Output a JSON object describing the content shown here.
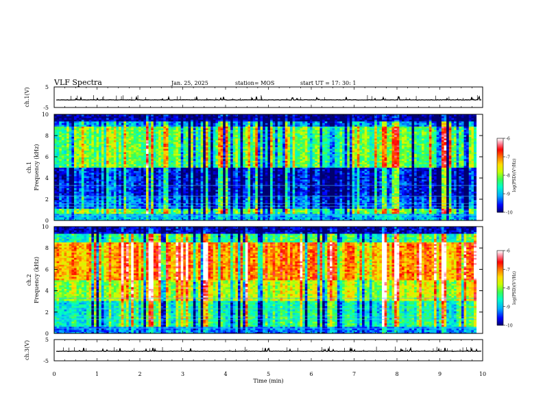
{
  "header": {
    "title": "VLF Spectra",
    "date": "Jan. 25, 2025",
    "station": "station= MOS",
    "start_time": "start  UT =   17: 30: 1"
  },
  "chart_data": [
    {
      "type": "line",
      "panel": "ch1-waveform",
      "ylabel": "ch.1(V)",
      "ylim": [
        -5,
        5
      ],
      "yticks": [
        "5",
        "-5"
      ],
      "xlim": [
        0,
        10
      ],
      "baseline_value": -1.3,
      "description": "near-flat trace with occasional small spikes"
    },
    {
      "type": "heatmap",
      "panel": "ch1-spectrogram",
      "ylabel": "ch.1\nFrequency (kHz)",
      "ylabel_line1": "ch.1",
      "ylabel_line2": "Frequency (kHz)",
      "xlim": [
        0,
        9.85
      ],
      "ylim": [
        0,
        10
      ],
      "yticks": [
        "0",
        "2",
        "4",
        "6",
        "8",
        "10"
      ],
      "colorbar": {
        "label": "log(PSD)(V²/Hz)",
        "range": [
          -10,
          -6
        ],
        "ticks": [
          "-6",
          "-7",
          "-8",
          "-9",
          "-10"
        ],
        "colormap": [
          "#000080",
          "#0000ff",
          "#00bfff",
          "#00ff80",
          "#80ff00",
          "#ffff00",
          "#ff8000",
          "#ff0000",
          "#ff8080",
          "#ffffff"
        ]
      },
      "bands": [
        {
          "freq_range": [
            0,
            0.6
          ],
          "level": -9.0
        },
        {
          "freq_range": [
            0.6,
            1.2
          ],
          "level": -8.2
        },
        {
          "freq_range": [
            1.2,
            2.2
          ],
          "level": -9.3
        },
        {
          "freq_range": [
            2.2,
            5.0
          ],
          "level": -9.6
        },
        {
          "freq_range": [
            5.0,
            8.9
          ],
          "level": -8.2
        },
        {
          "freq_range": [
            8.9,
            9.4
          ],
          "level": -9.2
        },
        {
          "freq_range": [
            9.4,
            10
          ],
          "level": -9.9
        }
      ],
      "hot_times": [
        2.2,
        2.3,
        7.7,
        8.0,
        9.1
      ],
      "noise_level": "high"
    },
    {
      "type": "heatmap",
      "panel": "ch2-spectrogram",
      "ylabel": "ch.2\nFrequency (kHz)",
      "ylabel_line1": "ch.2",
      "ylabel_line2": "Frequency (kHz)",
      "xlim": [
        0,
        9.85
      ],
      "ylim": [
        0,
        10
      ],
      "yticks": [
        "0",
        "2",
        "4",
        "6",
        "8",
        "10"
      ],
      "colorbar": {
        "label": "log(PSD)(V²/Hz)",
        "range": [
          -10,
          -6
        ],
        "ticks": [
          "-6",
          "-7",
          "-8",
          "-9",
          "-10"
        ]
      },
      "bands": [
        {
          "freq_range": [
            0,
            0.6
          ],
          "level": -9.2
        },
        {
          "freq_range": [
            0.6,
            1.8
          ],
          "level": -8.5
        },
        {
          "freq_range": [
            1.8,
            3.0
          ],
          "level": -8.6
        },
        {
          "freq_range": [
            3.0,
            5.0
          ],
          "level": -7.8
        },
        {
          "freq_range": [
            5.0,
            8.5
          ],
          "level": -7.1
        },
        {
          "freq_range": [
            8.5,
            9.3
          ],
          "level": -8.4
        },
        {
          "freq_range": [
            9.3,
            10
          ],
          "level": -9.8
        }
      ],
      "hot_times": [
        2.2,
        2.3,
        7.7,
        8.0,
        9.1
      ]
    },
    {
      "type": "line",
      "panel": "ch3-waveform",
      "ylabel": "ch.3(V)",
      "ylim": [
        -5,
        5
      ],
      "yticks": [
        "5",
        "-5"
      ],
      "xlim": [
        0,
        10
      ],
      "baseline_value": -0.5,
      "xlabel": "Time  (min)",
      "xticks": [
        "0",
        "1",
        "2",
        "3",
        "4",
        "5",
        "6",
        "7",
        "8",
        "9",
        "10"
      ]
    }
  ]
}
